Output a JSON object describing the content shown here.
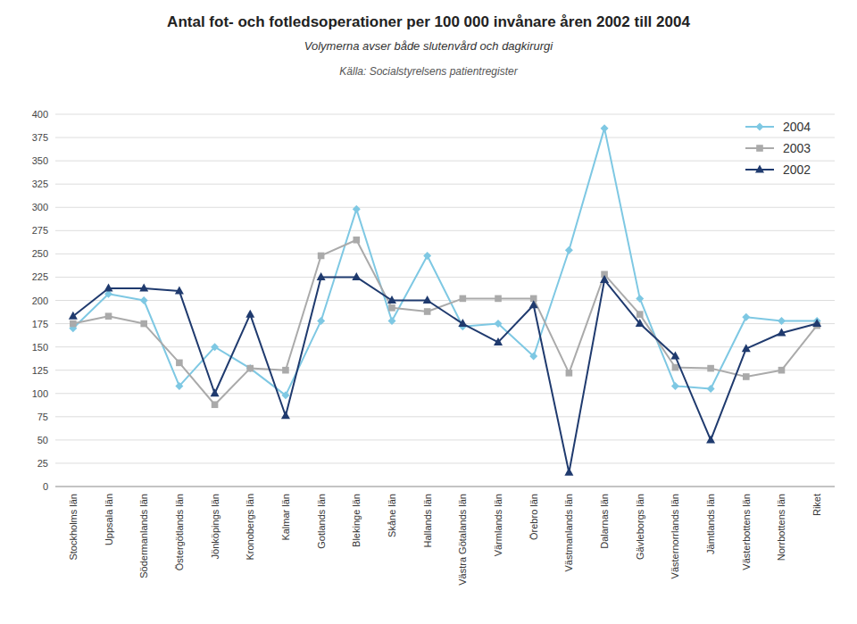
{
  "chart_data": {
    "type": "line",
    "title": "Antal fot- och fotledsoperationer per 100 000 invånare åren 2002 till 2004",
    "subtitle": "Volymerna avser både slutenvård och dagkirurgi",
    "source": "Källa: Socialstyrelsens patientregister",
    "categories": [
      "Stockholms län",
      "Uppsala län",
      "Södermanlands län",
      "Östergötlands län",
      "Jönköpings län",
      "Kronobergs län",
      "Kalmar län",
      "Gotlands län",
      "Blekinge län",
      "Skåne län",
      "Hallands län",
      "Västra Götalands län",
      "Värmlands län",
      "Örebro län",
      "Västmanlands län",
      "Dalarnas län",
      "Gävleborgs län",
      "Västernorrlands län",
      "Jämtlands län",
      "Västerbottens län",
      "Norrbottens län",
      "Riket"
    ],
    "series": [
      {
        "name": "2004",
        "color": "#7ec8e3",
        "marker": "diamond",
        "values": [
          170,
          207,
          200,
          108,
          150,
          127,
          98,
          178,
          298,
          178,
          248,
          172,
          175,
          140,
          254,
          385,
          202,
          108,
          105,
          182,
          178,
          178
        ]
      },
      {
        "name": "2003",
        "color": "#aaaaaa",
        "marker": "square",
        "values": [
          175,
          183,
          175,
          133,
          88,
          127,
          125,
          248,
          265,
          192,
          188,
          202,
          202,
          202,
          122,
          228,
          185,
          128,
          127,
          118,
          125,
          173
        ]
      },
      {
        "name": "2002",
        "color": "#1f3a6e",
        "marker": "triangle",
        "values": [
          183,
          213,
          213,
          210,
          100,
          185,
          76,
          225,
          225,
          200,
          200,
          175,
          155,
          195,
          15,
          222,
          175,
          140,
          50,
          148,
          165,
          175
        ]
      }
    ],
    "ylim": [
      0,
      400
    ],
    "yticks": [
      0,
      25,
      50,
      75,
      100,
      125,
      150,
      175,
      200,
      225,
      250,
      275,
      300,
      325,
      350,
      375,
      400
    ],
    "grid": true,
    "legend": "upper right"
  }
}
